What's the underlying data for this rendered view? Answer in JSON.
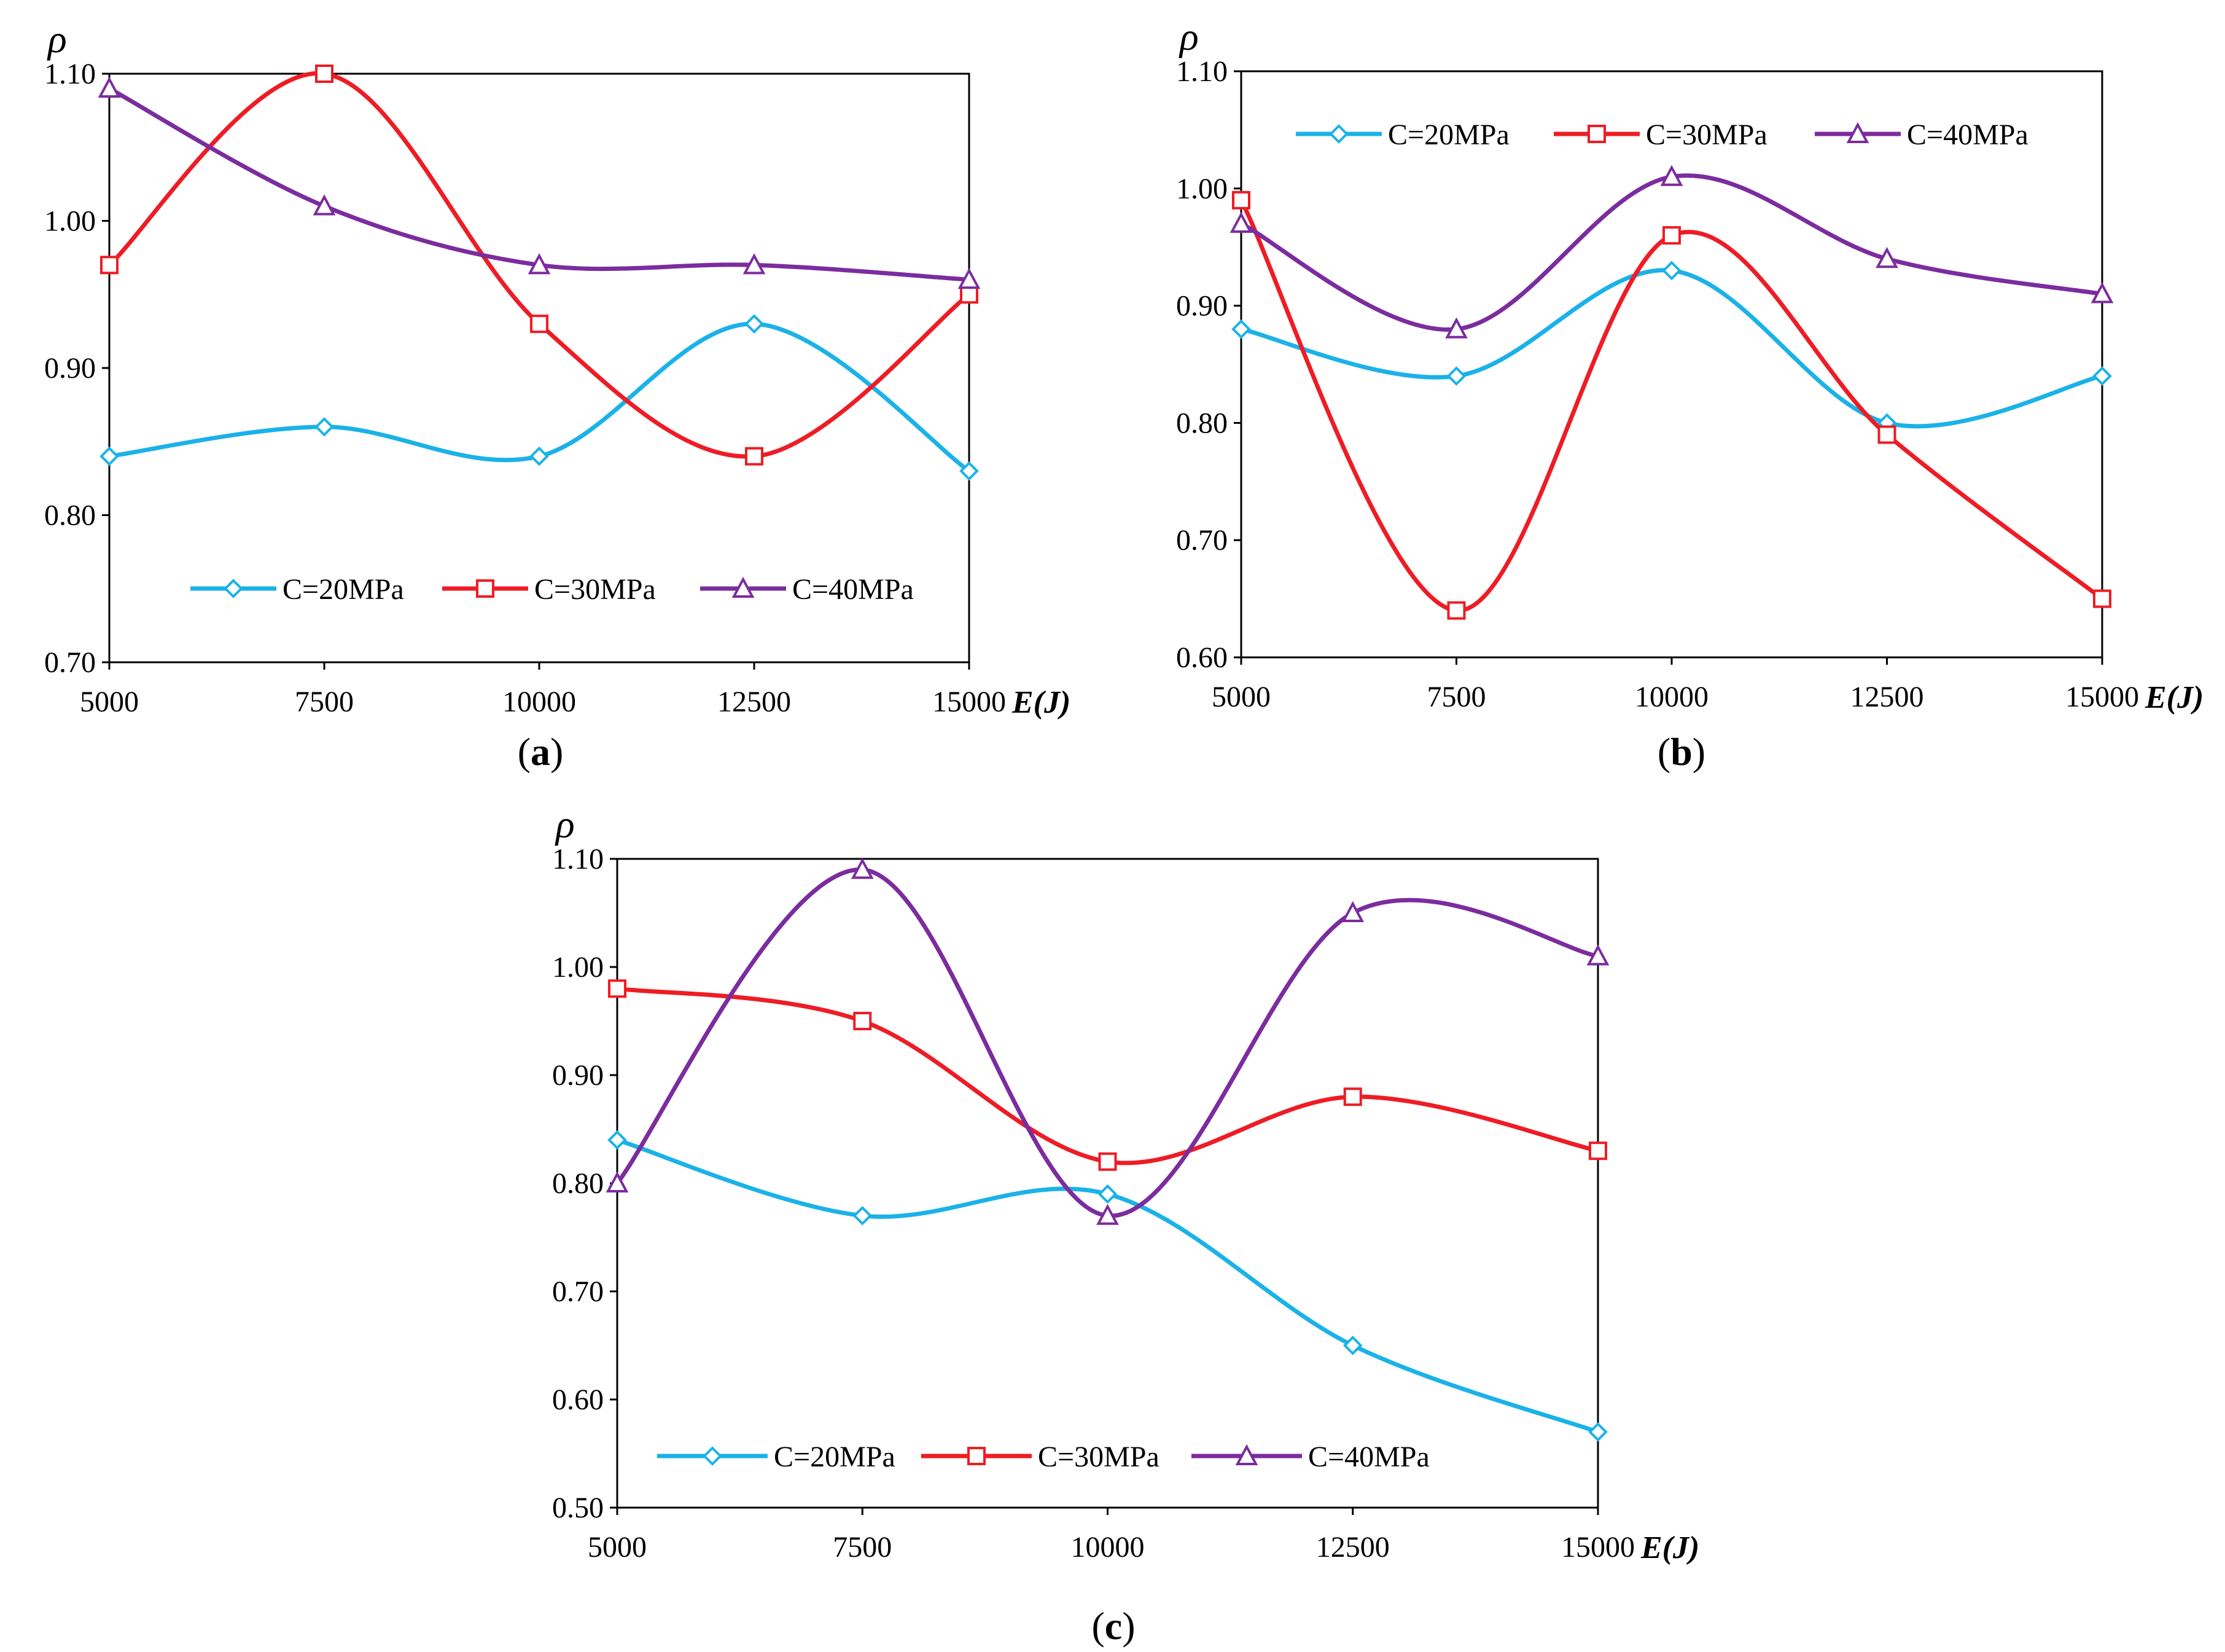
{
  "chart_data": [
    {
      "type": "line",
      "panel_label": "(a)",
      "panel_letter": "a",
      "ylabel": "ρ",
      "xlabel": "E(J)",
      "x": [
        5000,
        7500,
        10000,
        12500,
        15000
      ],
      "x_ticks": [
        "5000",
        "7500",
        "10000",
        "12500",
        "15000"
      ],
      "y_ticks": [
        "0.70",
        "0.80",
        "0.90",
        "1.00",
        "1.10"
      ],
      "ylim": [
        0.7,
        1.1
      ],
      "xlim": [
        5000,
        15000
      ],
      "grid": false,
      "legend_position": "bottom",
      "series": [
        {
          "name": "C=20MPa",
          "values": [
            0.84,
            0.86,
            0.84,
            0.93,
            0.83
          ],
          "color": "#1AB2E8",
          "marker": "diamond"
        },
        {
          "name": "C=30MPa",
          "values": [
            0.97,
            1.1,
            0.93,
            0.84,
            0.95
          ],
          "color": "#EE1C25",
          "marker": "square"
        },
        {
          "name": "C=40MPa",
          "values": [
            1.09,
            1.01,
            0.97,
            0.97,
            0.96
          ],
          "color": "#7B2C9E",
          "marker": "triangle"
        }
      ]
    },
    {
      "type": "line",
      "panel_label": "(b)",
      "panel_letter": "b",
      "ylabel": "ρ",
      "xlabel": "E(J)",
      "x": [
        5000,
        7500,
        10000,
        12500,
        15000
      ],
      "x_ticks": [
        "5000",
        "7500",
        "10000",
        "12500",
        "15000"
      ],
      "y_ticks": [
        "0.60",
        "0.70",
        "0.80",
        "0.90",
        "1.00",
        "1.10"
      ],
      "ylim": [
        0.6,
        1.1
      ],
      "xlim": [
        5000,
        15000
      ],
      "grid": false,
      "legend_position": "top",
      "series": [
        {
          "name": "C=20MPa",
          "values": [
            0.88,
            0.84,
            0.93,
            0.8,
            0.84
          ],
          "color": "#1AB2E8",
          "marker": "diamond"
        },
        {
          "name": "C=30MPa",
          "values": [
            0.99,
            0.64,
            0.96,
            0.79,
            0.65
          ],
          "color": "#EE1C25",
          "marker": "square"
        },
        {
          "name": "C=40MPa",
          "values": [
            0.97,
            0.88,
            1.01,
            0.94,
            0.91
          ],
          "color": "#7B2C9E",
          "marker": "triangle"
        }
      ]
    },
    {
      "type": "line",
      "panel_label": "(c)",
      "panel_letter": "c",
      "ylabel": "ρ",
      "xlabel": "E(J)",
      "x": [
        5000,
        7500,
        10000,
        12500,
        15000
      ],
      "x_ticks": [
        "5000",
        "7500",
        "10000",
        "12500",
        "15000"
      ],
      "y_ticks": [
        "0.50",
        "0.60",
        "0.70",
        "0.80",
        "0.90",
        "1.00",
        "1.10"
      ],
      "ylim": [
        0.5,
        1.1
      ],
      "xlim": [
        5000,
        15000
      ],
      "grid": false,
      "legend_position": "bottom",
      "series": [
        {
          "name": "C=20MPa",
          "values": [
            0.84,
            0.77,
            0.79,
            0.65,
            0.57
          ],
          "color": "#1AB2E8",
          "marker": "diamond"
        },
        {
          "name": "C=30MPa",
          "values": [
            0.98,
            0.95,
            0.82,
            0.88,
            0.83
          ],
          "color": "#EE1C25",
          "marker": "square"
        },
        {
          "name": "C=40MPa",
          "values": [
            0.8,
            1.09,
            0.77,
            1.05,
            1.01
          ],
          "color": "#7B2C9E",
          "marker": "triangle"
        }
      ]
    }
  ]
}
